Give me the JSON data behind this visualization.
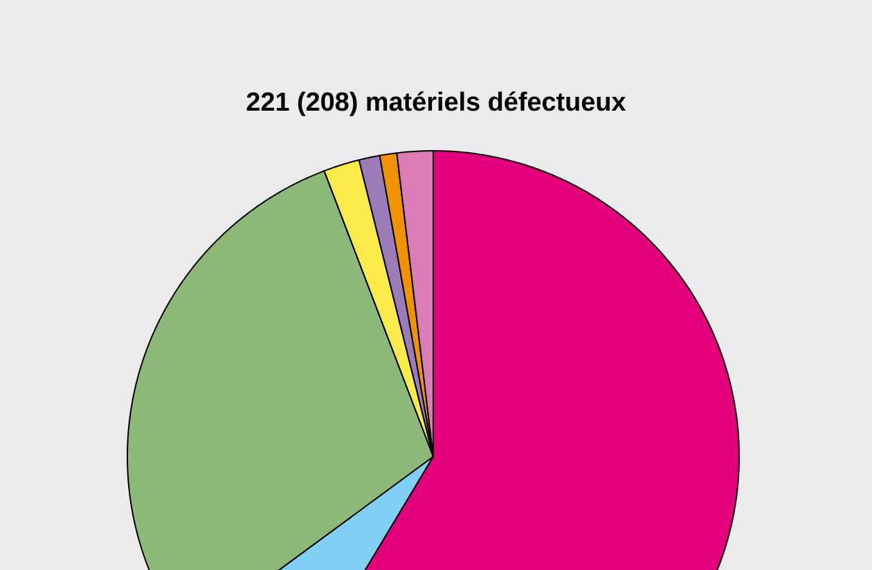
{
  "chart_data": {
    "type": "pie",
    "title": "**221 (208) matériels défectueux**",
    "categories": [
      null,
      null,
      null,
      null,
      null,
      null,
      null
    ],
    "values": [
      58.6,
      6.3,
      29.3,
      1.9,
      1.1,
      0.9,
      1.9
    ],
    "colors": [
      "#e4007c",
      "#82cff5",
      "#8cb878",
      "#fce94a",
      "#9b7bb8",
      "#f39200",
      "#d97db4"
    ]
  }
}
